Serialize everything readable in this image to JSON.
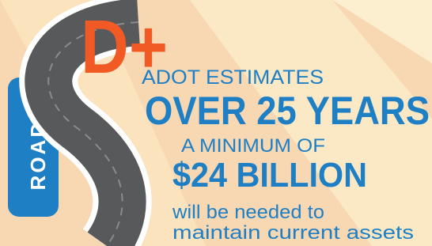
{
  "grade": "D+",
  "category": "ROADS",
  "lines": [
    "ADOT ESTIMATES",
    "OVER 25 YEARS",
    "A MINIMUM OF",
    "$24 BILLION",
    "will be needed to",
    "maintain current assets"
  ]
}
